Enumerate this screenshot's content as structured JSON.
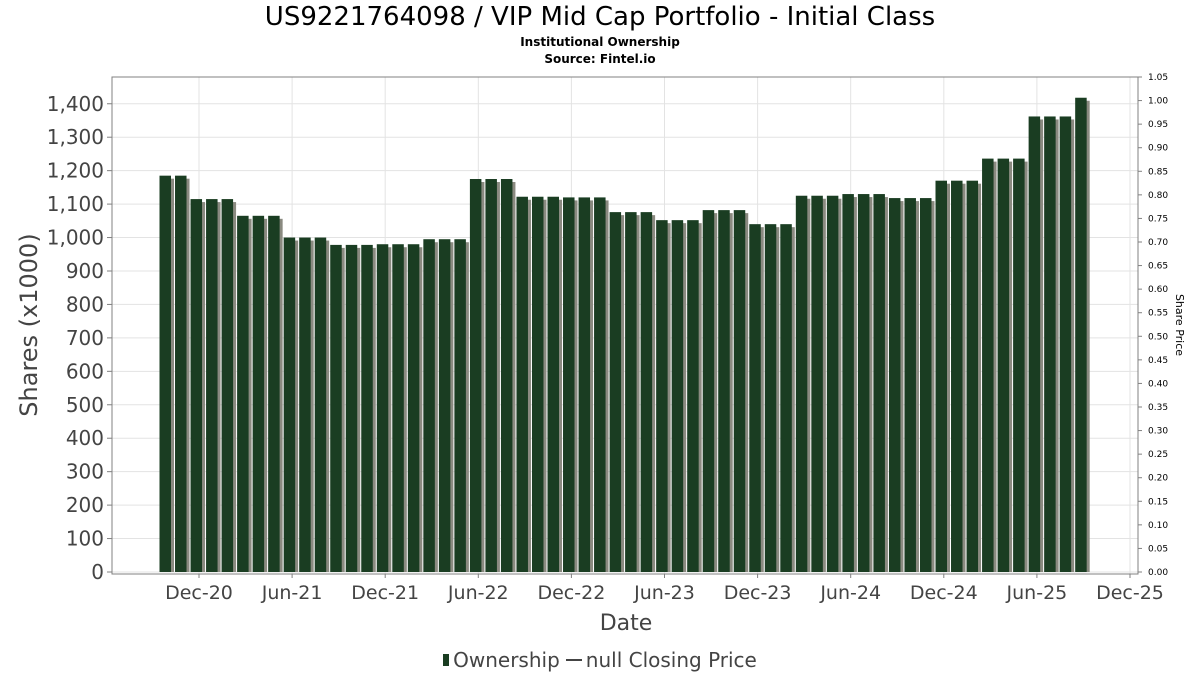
{
  "chart_data": {
    "type": "bar",
    "title": "US9221764098 / VIP Mid Cap Portfolio - Initial Class",
    "subtitles": [
      "Institutional Ownership",
      "Source: Fintel.io"
    ],
    "xlabel": "Date",
    "ylabel": "Shares (x1000)",
    "y2label": "Share Price",
    "ylim": [
      0,
      1480
    ],
    "y2lim": [
      0,
      1.05
    ],
    "yticks": [
      "0",
      "100",
      "200",
      "300",
      "400",
      "500",
      "600",
      "700",
      "800",
      "900",
      "1,000",
      "1,100",
      "1,200",
      "1,300",
      "1,400"
    ],
    "y2ticks": [
      "0.00",
      "0.05",
      "0.10",
      "0.15",
      "0.20",
      "0.25",
      "0.30",
      "0.35",
      "0.40",
      "0.45",
      "0.50",
      "0.55",
      "0.60",
      "0.65",
      "0.70",
      "0.75",
      "0.80",
      "0.85",
      "0.90",
      "0.95",
      "1.00",
      "1.05"
    ],
    "xticks": [
      "Dec-20",
      "Jun-21",
      "Dec-21",
      "Jun-22",
      "Dec-22",
      "Jun-23",
      "Dec-23",
      "Jun-24",
      "Dec-24",
      "Jun-25",
      "Dec-25"
    ],
    "grid": true,
    "legend_position": "bottom",
    "series": [
      {
        "name": "Ownership",
        "color": "#1a3d22",
        "values": [
          1185,
          1185,
          1115,
          1115,
          1115,
          1065,
          1065,
          1065,
          1000,
          1000,
          1000,
          978,
          978,
          978,
          980,
          980,
          980,
          995,
          995,
          995,
          1175,
          1175,
          1175,
          1122,
          1122,
          1122,
          1120,
          1120,
          1120,
          1076,
          1076,
          1076,
          1052,
          1052,
          1052,
          1082,
          1082,
          1082,
          1040,
          1040,
          1040,
          1125,
          1125,
          1125,
          1130,
          1130,
          1130,
          1118,
          1118,
          1118,
          1170,
          1170,
          1170,
          1236,
          1236,
          1236,
          1362,
          1362,
          1362,
          1418
        ]
      }
    ],
    "legend": [
      {
        "label": "Ownership",
        "kind": "bar"
      },
      {
        "label": "null Closing Price",
        "kind": "line"
      }
    ]
  }
}
